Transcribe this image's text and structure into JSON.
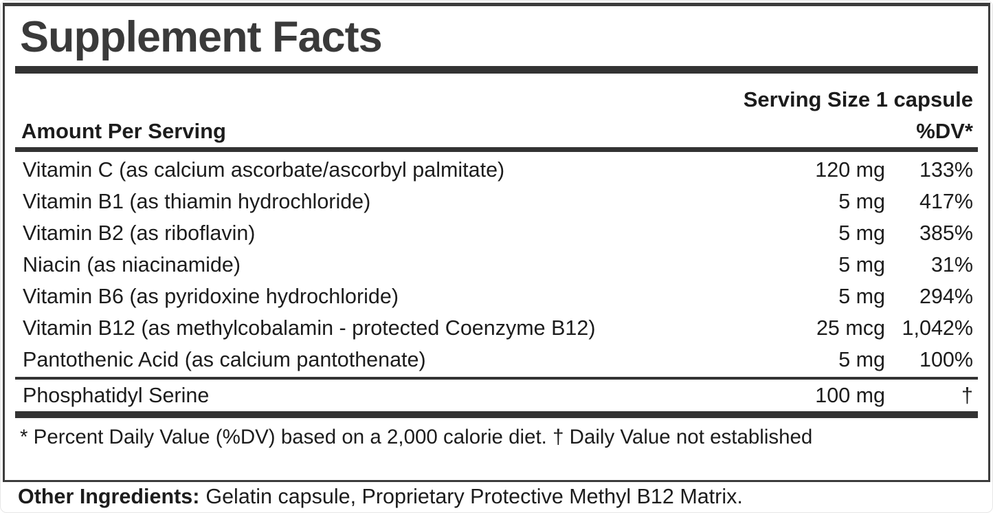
{
  "panel": {
    "title": "Supplement Facts",
    "serving_size": "Serving Size 1 capsule",
    "columns": {
      "amount_header": "Amount Per Serving",
      "dv_header": "%DV*"
    },
    "rows": [
      {
        "name": "Vitamin C (as calcium ascorbate/ascorbyl palmitate)",
        "amount": "120 mg",
        "dv": "133%"
      },
      {
        "name": "Vitamin B1 (as thiamin hydrochloride)",
        "amount": "5 mg",
        "dv": "417%"
      },
      {
        "name": "Vitamin B2 (as riboflavin)",
        "amount": "5 mg",
        "dv": "385%"
      },
      {
        "name": "Niacin (as niacinamide)",
        "amount": "5 mg",
        "dv": "31%"
      },
      {
        "name": "Vitamin B6 (as pyridoxine hydrochloride)",
        "amount": "5 mg",
        "dv": "294%"
      },
      {
        "name": "Vitamin B12 (as methylcobalamin - protected Coenzyme B12)",
        "amount": "25 mcg",
        "dv": "1,042%"
      },
      {
        "name": "Pantothenic Acid (as calcium pantothenate)",
        "amount": "5 mg",
        "dv": "100%"
      }
    ],
    "secondary_row": {
      "name": "Phosphatidyl Serine",
      "amount": "100 mg",
      "dv": "†"
    },
    "footnote": "* Percent Daily Value (%DV) based on a 2,000 calorie diet. † Daily Value not established"
  },
  "other_ingredients": {
    "label": "Other Ingredients:",
    "text": "Gelatin capsule, Proprietary Protective Methyl B12 Matrix."
  },
  "colors": {
    "text": "#1c1c1c",
    "title": "#3a3a3a",
    "rule": "#333333",
    "border": "#3c3c3c"
  }
}
